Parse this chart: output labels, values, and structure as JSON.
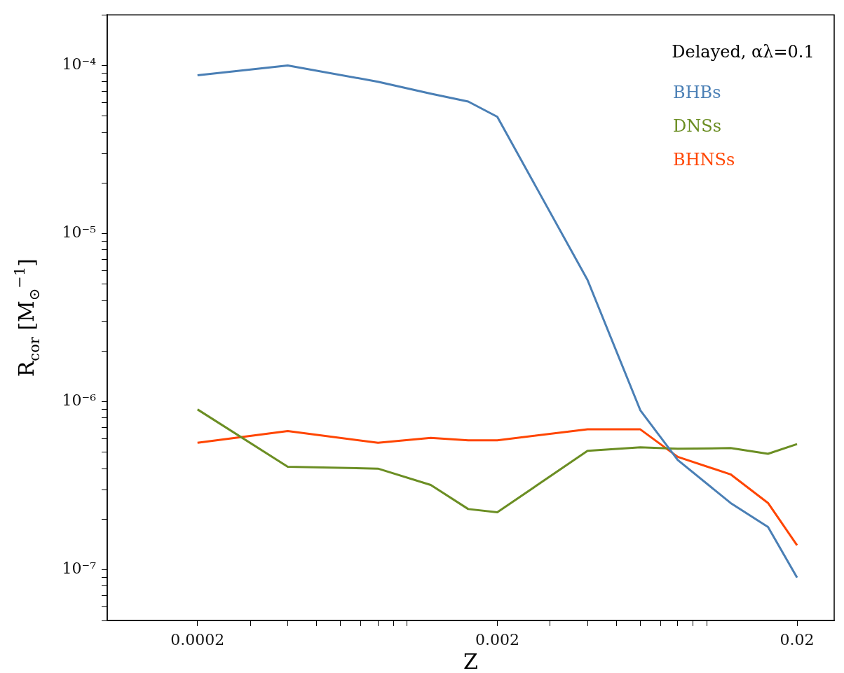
{
  "chart_data": {
    "type": "line",
    "title": "Delayed, αλ=0.1",
    "xlabel": "Z",
    "ylabel": "R$_{cor}$ [M$_{⊙}$$^{−1}$]",
    "x": [
      0.0002,
      0.0004,
      0.0008,
      0.0012,
      0.0016,
      0.002,
      0.004,
      0.006,
      0.008,
      0.012,
      0.016,
      0.02
    ],
    "series": [
      {
        "name": "BHBs",
        "color": "#4a7fb5",
        "values": [
          8.75e-05,
          0.0001,
          8e-05,
          6.8e-05,
          6.1e-05,
          4.95e-05,
          5.3e-06,
          8.9e-07,
          4.5e-07,
          2.5e-07,
          1.8e-07,
          9e-08
        ]
      },
      {
        "name": "DNSs",
        "color": "#6b8e23",
        "values": [
          9e-07,
          4.1e-07,
          4e-07,
          3.2e-07,
          2.3e-07,
          2.2e-07,
          5.1e-07,
          5.35e-07,
          5.25e-07,
          5.3e-07,
          4.9e-07,
          5.6e-07
        ]
      },
      {
        "name": "BHNSs",
        "color": "#ff4500",
        "values": [
          5.7e-07,
          6.7e-07,
          5.7e-07,
          6.1e-07,
          5.9e-07,
          5.9e-07,
          6.85e-07,
          6.85e-07,
          4.7e-07,
          3.7e-07,
          2.5e-07,
          1.4e-07
        ]
      }
    ],
    "log": "xy",
    "xlim": [
      0.0001,
      0.0266
    ],
    "ylim": [
      5e-08,
      0.0002
    ],
    "xticks": [
      0.0002,
      {
        "value": 0.0003,
        "label": null
      },
      {
        "value": 0.0004,
        "label": null
      },
      {
        "value": 0.0005,
        "label": null
      },
      {
        "value": 0.0006,
        "label": null
      },
      {
        "value": 0.0007,
        "label": null
      },
      {
        "value": 0.0008,
        "label": null
      },
      {
        "value": 0.0009,
        "label": null
      },
      {
        "value": 0.001,
        "label": null
      },
      0.002,
      {
        "value": 0.003,
        "label": null
      },
      {
        "value": 0.004,
        "label": null
      },
      {
        "value": 0.005,
        "label": null
      },
      {
        "value": 0.006,
        "label": null
      },
      {
        "value": 0.007,
        "label": null
      },
      {
        "value": 0.008,
        "label": null
      },
      {
        "value": 0.009,
        "label": null
      },
      {
        "value": 0.01,
        "label": null
      },
      0.02
    ],
    "yticks": [
      {
        "value": 5e-08,
        "label": null
      },
      {
        "value": 6e-08,
        "label": null
      },
      {
        "value": 7e-08,
        "label": null
      },
      {
        "value": 8e-08,
        "label": null
      },
      {
        "value": 9e-08,
        "label": null
      },
      {
        "value": 1e-07,
        "label": "10⁻⁷"
      },
      {
        "value": 2e-07,
        "label": null
      },
      {
        "value": 3e-07,
        "label": null
      },
      {
        "value": 4e-07,
        "label": null
      },
      {
        "value": 5e-07,
        "label": null
      },
      {
        "value": 6e-07,
        "label": null
      },
      {
        "value": 7e-07,
        "label": null
      },
      {
        "value": 8e-07,
        "label": null
      },
      {
        "value": 9e-07,
        "label": null
      },
      {
        "value": 1e-06,
        "label": "10⁻⁶"
      },
      {
        "value": 2e-06,
        "label": null
      },
      {
        "value": 3e-06,
        "label": null
      },
      {
        "value": 4e-06,
        "label": null
      },
      {
        "value": 5e-06,
        "label": null
      },
      {
        "value": 6e-06,
        "label": null
      },
      {
        "value": 7e-06,
        "label": null
      },
      {
        "value": 8e-06,
        "label": null
      },
      {
        "value": 9e-06,
        "label": null
      },
      {
        "value": 1e-05,
        "label": "10⁻⁵"
      },
      {
        "value": 2e-05,
        "label": null
      },
      {
        "value": 3e-05,
        "label": null
      },
      {
        "value": 4e-05,
        "label": null
      },
      {
        "value": 5e-05,
        "label": null
      },
      {
        "value": 6e-05,
        "label": null
      },
      {
        "value": 7e-05,
        "label": null
      },
      {
        "value": 8e-05,
        "label": null
      },
      {
        "value": 9e-05,
        "label": null
      },
      {
        "value": 0.0001,
        "label": "10⁻⁴"
      },
      {
        "value": 0.0002,
        "label": null
      }
    ],
    "grid": false,
    "legend": "top right",
    "marker": "none",
    "line_style": "solid"
  }
}
